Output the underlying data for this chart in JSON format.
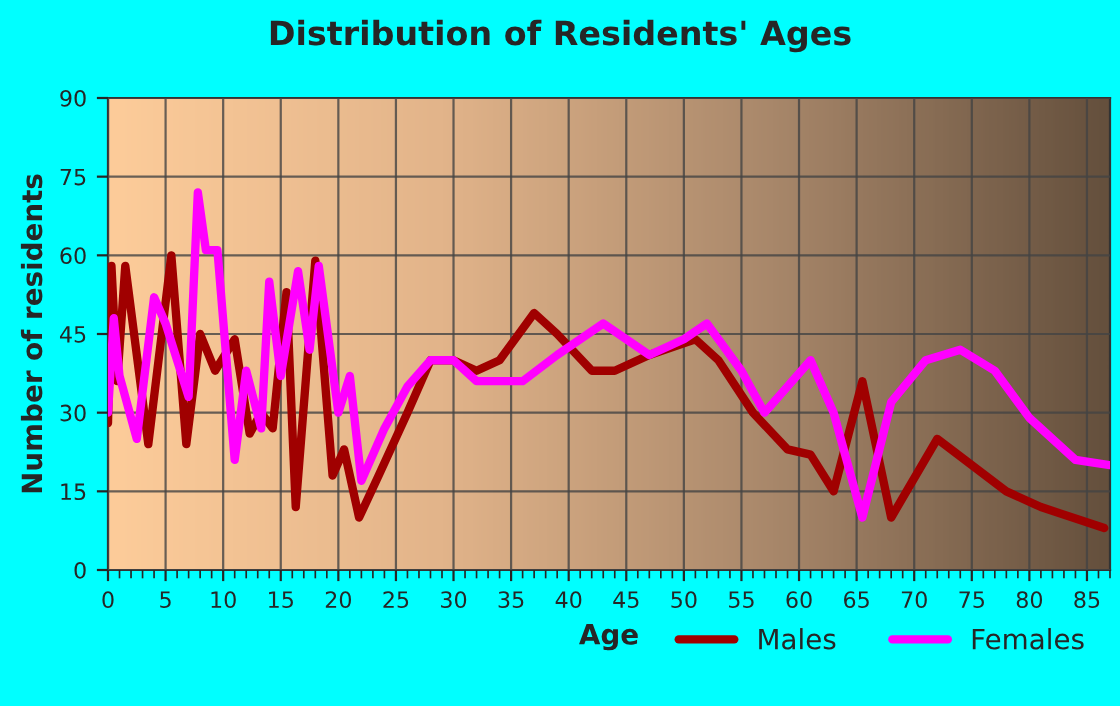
{
  "chart_data": {
    "type": "line",
    "title": "Distribution of Residents' Ages",
    "xlabel": "Age",
    "ylabel": "Number of residents",
    "xlim": [
      0,
      87
    ],
    "xticks": [
      0,
      5,
      10,
      15,
      20,
      25,
      30,
      35,
      40,
      45,
      50,
      55,
      60,
      65,
      70,
      75,
      80,
      85
    ],
    "ylim": [
      0,
      90
    ],
    "yticks": [
      0,
      15,
      30,
      45,
      60,
      75,
      90
    ],
    "grid": true,
    "legend": "bottom right",
    "line_style": "solid",
    "marker": "none",
    "series": [
      {
        "name": "Males",
        "color": "#a00000",
        "x": [
          0,
          0.3,
          0.8,
          1.5,
          3.5,
          5.5,
          6.8,
          8,
          9.3,
          11,
          12.3,
          13.3,
          14.3,
          15.5,
          16.3,
          18,
          19.5,
          20.5,
          21.8,
          23.5,
          26,
          28,
          30,
          32,
          34,
          37,
          39,
          42,
          44,
          47,
          51,
          53,
          56,
          59,
          61,
          63,
          65.5,
          68,
          72,
          75,
          78,
          81,
          86.5
        ],
        "values": [
          28,
          58,
          36,
          58,
          24,
          60,
          24,
          45,
          38,
          44,
          26,
          30,
          27,
          53,
          12,
          59,
          18,
          23,
          10,
          18,
          30,
          40,
          40,
          38,
          40,
          49,
          45,
          38,
          38,
          41,
          44,
          40,
          30,
          23,
          22,
          15,
          36,
          10,
          25,
          20,
          15,
          12,
          8
        ]
      },
      {
        "name": "Females",
        "color": "#ff00ff",
        "x": [
          0,
          0.5,
          1,
          2.5,
          4,
          5,
          7,
          7.8,
          8.5,
          9.5,
          11,
          12,
          13.3,
          14,
          15,
          16.5,
          17.5,
          18.3,
          20,
          21,
          22,
          24,
          26,
          28,
          30,
          32,
          36,
          39,
          43,
          47,
          50,
          52,
          55,
          57,
          61,
          63,
          65.5,
          68,
          71,
          74,
          77,
          80,
          84,
          87
        ],
        "values": [
          30,
          48,
          37,
          25,
          52,
          47,
          33,
          72,
          61,
          61,
          21,
          38,
          27,
          55,
          37,
          57,
          42,
          58,
          30,
          37,
          17,
          27,
          35,
          40,
          40,
          36,
          36,
          41,
          47,
          41,
          44,
          47,
          38,
          30,
          40,
          30,
          10,
          32,
          40,
          42,
          38,
          29,
          21,
          20
        ]
      }
    ]
  }
}
